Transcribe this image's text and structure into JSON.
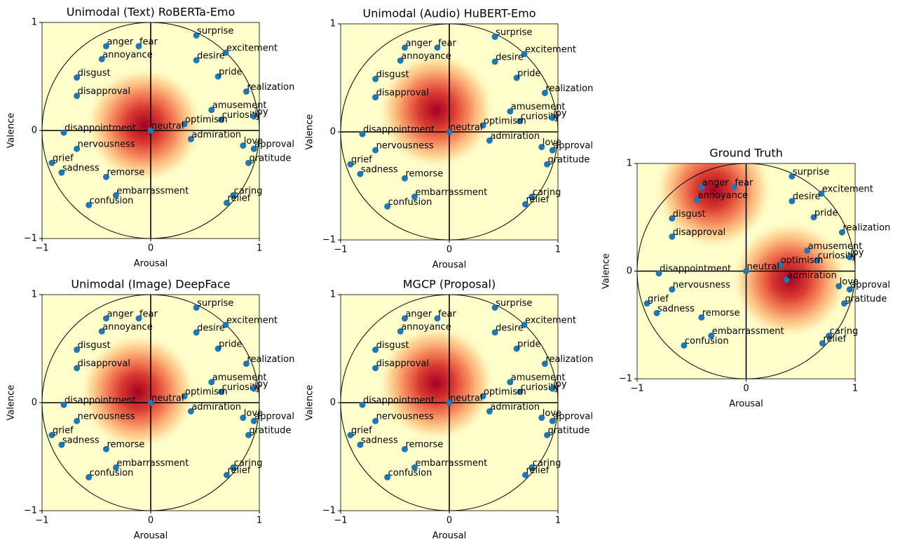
{
  "chart_data": [
    {
      "type": "scatter",
      "title": "Unimodal (Text) RoBERTa-Emo",
      "x_label": "Arousal",
      "y_label": "Valence",
      "xlim": [
        -1,
        1
      ],
      "ylim": [
        -1,
        1
      ],
      "xticks": [
        {
          "value": -1,
          "label": "−1"
        },
        0,
        1
      ],
      "yticks": [
        {
          "value": -1,
          "label": "−1"
        },
        0,
        1
      ],
      "point_color": "#1f77b4",
      "labels": [
        "anger",
        "fear",
        "annoyance",
        "surprise",
        "excitement",
        "desire",
        "pride",
        "disgust",
        "disapproval",
        "realization",
        "amusement",
        "curiosity",
        "joy",
        "optimism",
        "neutral",
        "disappointment",
        "admiration",
        "love",
        "approval",
        "nervousness",
        "grief",
        "gratitude",
        "sadness",
        "remorse",
        "embarrassment",
        "caring",
        "relief",
        "confusion"
      ],
      "x": [
        -0.41,
        -0.11,
        -0.45,
        0.42,
        0.69,
        0.42,
        0.62,
        -0.68,
        -0.68,
        0.88,
        0.56,
        0.65,
        0.95,
        0.31,
        0,
        -0.8,
        0.37,
        0.85,
        0.95,
        -0.68,
        -0.91,
        0.9,
        -0.82,
        -0.41,
        -0.32,
        0.76,
        0.7,
        -0.57
      ],
      "y": [
        0.78,
        0.78,
        0.66,
        0.88,
        0.72,
        0.65,
        0.5,
        0.49,
        0.32,
        0.36,
        0.19,
        0.1,
        0.13,
        0.06,
        0,
        -0.02,
        -0.08,
        -0.14,
        -0.17,
        -0.17,
        -0.3,
        -0.3,
        -0.39,
        -0.43,
        -0.6,
        -0.6,
        -0.67,
        -0.69
      ],
      "density": {
        "x": [
          -0.06
        ],
        "y": [
          0.05
        ]
      }
    },
    {
      "type": "scatter",
      "title": "Unimodal (Audio) HuBERT-Emo",
      "x_label": "Arousal",
      "y_label": "Valence",
      "xlim": [
        -1,
        1
      ],
      "ylim": [
        -1,
        1
      ],
      "xticks": [
        {
          "value": -1,
          "label": "−1"
        },
        0,
        1
      ],
      "yticks": [
        {
          "value": -1,
          "label": "−1"
        },
        0,
        1
      ],
      "point_color": "#1f77b4",
      "labels": [
        "anger",
        "fear",
        "annoyance",
        "surprise",
        "excitement",
        "desire",
        "pride",
        "disgust",
        "disapproval",
        "realization",
        "amusement",
        "curiosity",
        "joy",
        "optimism",
        "neutral",
        "disappointment",
        "admiration",
        "love",
        "approval",
        "nervousness",
        "grief",
        "gratitude",
        "sadness",
        "remorse",
        "embarrassment",
        "caring",
        "relief",
        "confusion"
      ],
      "x": [
        -0.41,
        -0.11,
        -0.45,
        0.42,
        0.69,
        0.42,
        0.62,
        -0.68,
        -0.68,
        0.88,
        0.56,
        0.65,
        0.95,
        0.31,
        0,
        -0.8,
        0.37,
        0.85,
        0.95,
        -0.68,
        -0.91,
        0.9,
        -0.82,
        -0.41,
        -0.32,
        0.76,
        0.7,
        -0.57
      ],
      "y": [
        0.78,
        0.78,
        0.66,
        0.88,
        0.72,
        0.65,
        0.5,
        0.49,
        0.32,
        0.36,
        0.19,
        0.1,
        0.13,
        0.06,
        0,
        -0.02,
        -0.08,
        -0.14,
        -0.17,
        -0.17,
        -0.3,
        -0.3,
        -0.39,
        -0.43,
        -0.6,
        -0.6,
        -0.67,
        -0.69
      ],
      "density": {
        "x": [
          -0.12
        ],
        "y": [
          0.2
        ]
      }
    },
    {
      "type": "scatter",
      "title": "Ground Truth",
      "x_label": "Arousal",
      "y_label": "Valence",
      "xlim": [
        -1,
        1
      ],
      "ylim": [
        -1,
        1
      ],
      "xticks": [
        {
          "value": -1,
          "label": "−1"
        },
        0,
        1
      ],
      "yticks": [
        {
          "value": -1,
          "label": "−1"
        },
        0,
        1
      ],
      "point_color": "#1f77b4",
      "labels": [
        "anger",
        "fear",
        "annoyance",
        "surprise",
        "excitement",
        "desire",
        "pride",
        "disgust",
        "disapproval",
        "realization",
        "amusement",
        "curiosity",
        "joy",
        "optimism",
        "neutral",
        "disappointment",
        "admiration",
        "love",
        "approval",
        "nervousness",
        "grief",
        "gratitude",
        "sadness",
        "remorse",
        "embarrassment",
        "caring",
        "relief",
        "confusion"
      ],
      "x": [
        -0.41,
        -0.11,
        -0.45,
        0.42,
        0.69,
        0.42,
        0.62,
        -0.68,
        -0.68,
        0.88,
        0.56,
        0.65,
        0.95,
        0.31,
        0,
        -0.8,
        0.37,
        0.85,
        0.95,
        -0.68,
        -0.91,
        0.9,
        -0.82,
        -0.41,
        -0.32,
        0.76,
        0.7,
        -0.57
      ],
      "y": [
        0.78,
        0.78,
        0.66,
        0.88,
        0.72,
        0.65,
        0.5,
        0.49,
        0.32,
        0.36,
        0.19,
        0.1,
        0.13,
        0.06,
        0,
        -0.02,
        -0.08,
        -0.14,
        -0.17,
        -0.17,
        -0.3,
        -0.3,
        -0.39,
        -0.43,
        -0.6,
        -0.6,
        -0.67,
        -0.69
      ],
      "density": {
        "x": [
          -0.3,
          0.4
        ],
        "y": [
          0.75,
          -0.08
        ]
      }
    },
    {
      "type": "scatter",
      "title": "Unimodal (Image) DeepFace",
      "x_label": "Arousal",
      "y_label": "Valence",
      "xlim": [
        -1,
        1
      ],
      "ylim": [
        -1,
        1
      ],
      "xticks": [
        {
          "value": -1,
          "label": "−1"
        },
        0,
        1
      ],
      "yticks": [
        {
          "value": -1,
          "label": "−1"
        },
        0,
        1
      ],
      "point_color": "#1f77b4",
      "labels": [
        "anger",
        "fear",
        "annoyance",
        "surprise",
        "excitement",
        "desire",
        "pride",
        "disgust",
        "disapproval",
        "realization",
        "amusement",
        "curiosity",
        "joy",
        "optimism",
        "neutral",
        "disappointment",
        "admiration",
        "love",
        "approval",
        "nervousness",
        "grief",
        "gratitude",
        "sadness",
        "remorse",
        "embarrassment",
        "caring",
        "relief",
        "confusion"
      ],
      "x": [
        -0.41,
        -0.11,
        -0.45,
        0.42,
        0.69,
        0.42,
        0.62,
        -0.68,
        -0.68,
        0.88,
        0.56,
        0.65,
        0.95,
        0.31,
        0,
        -0.8,
        0.37,
        0.85,
        0.95,
        -0.68,
        -0.91,
        0.9,
        -0.82,
        -0.41,
        -0.32,
        0.76,
        0.7,
        -0.57
      ],
      "y": [
        0.78,
        0.78,
        0.66,
        0.88,
        0.72,
        0.65,
        0.5,
        0.49,
        0.32,
        0.36,
        0.19,
        0.1,
        0.13,
        0.06,
        0,
        -0.02,
        -0.08,
        -0.14,
        -0.17,
        -0.17,
        -0.3,
        -0.3,
        -0.39,
        -0.43,
        -0.6,
        -0.6,
        -0.67,
        -0.69
      ],
      "density": {
        "x": [
          -0.12
        ],
        "y": [
          0.1
        ]
      }
    },
    {
      "type": "scatter",
      "title": "MGCP (Proposal)",
      "x_label": "Arousal",
      "y_label": "Valence",
      "xlim": [
        -1,
        1
      ],
      "ylim": [
        -1,
        1
      ],
      "xticks": [
        {
          "value": -1,
          "label": "−1"
        },
        0,
        1
      ],
      "yticks": [
        {
          "value": -1,
          "label": "−1"
        },
        0,
        1
      ],
      "point_color": "#1f77b4",
      "labels": [
        "anger",
        "fear",
        "annoyance",
        "surprise",
        "excitement",
        "desire",
        "pride",
        "disgust",
        "disapproval",
        "realization",
        "amusement",
        "curiosity",
        "joy",
        "optimism",
        "neutral",
        "disappointment",
        "admiration",
        "love",
        "approval",
        "nervousness",
        "grief",
        "gratitude",
        "sadness",
        "remorse",
        "embarrassment",
        "caring",
        "relief",
        "confusion"
      ],
      "x": [
        -0.41,
        -0.11,
        -0.45,
        0.42,
        0.69,
        0.42,
        0.62,
        -0.68,
        -0.68,
        0.88,
        0.56,
        0.65,
        0.95,
        0.31,
        0,
        -0.8,
        0.37,
        0.85,
        0.95,
        -0.68,
        -0.91,
        0.9,
        -0.82,
        -0.41,
        -0.32,
        0.76,
        0.7,
        -0.57
      ],
      "y": [
        0.78,
        0.78,
        0.66,
        0.88,
        0.72,
        0.65,
        0.5,
        0.49,
        0.32,
        0.36,
        0.19,
        0.1,
        0.13,
        0.06,
        0,
        -0.02,
        -0.08,
        -0.14,
        -0.17,
        -0.17,
        -0.3,
        -0.3,
        -0.39,
        -0.43,
        -0.6,
        -0.6,
        -0.67,
        -0.69
      ],
      "density": {
        "x": [
          -0.12
        ],
        "y": [
          0.18
        ]
      }
    }
  ]
}
